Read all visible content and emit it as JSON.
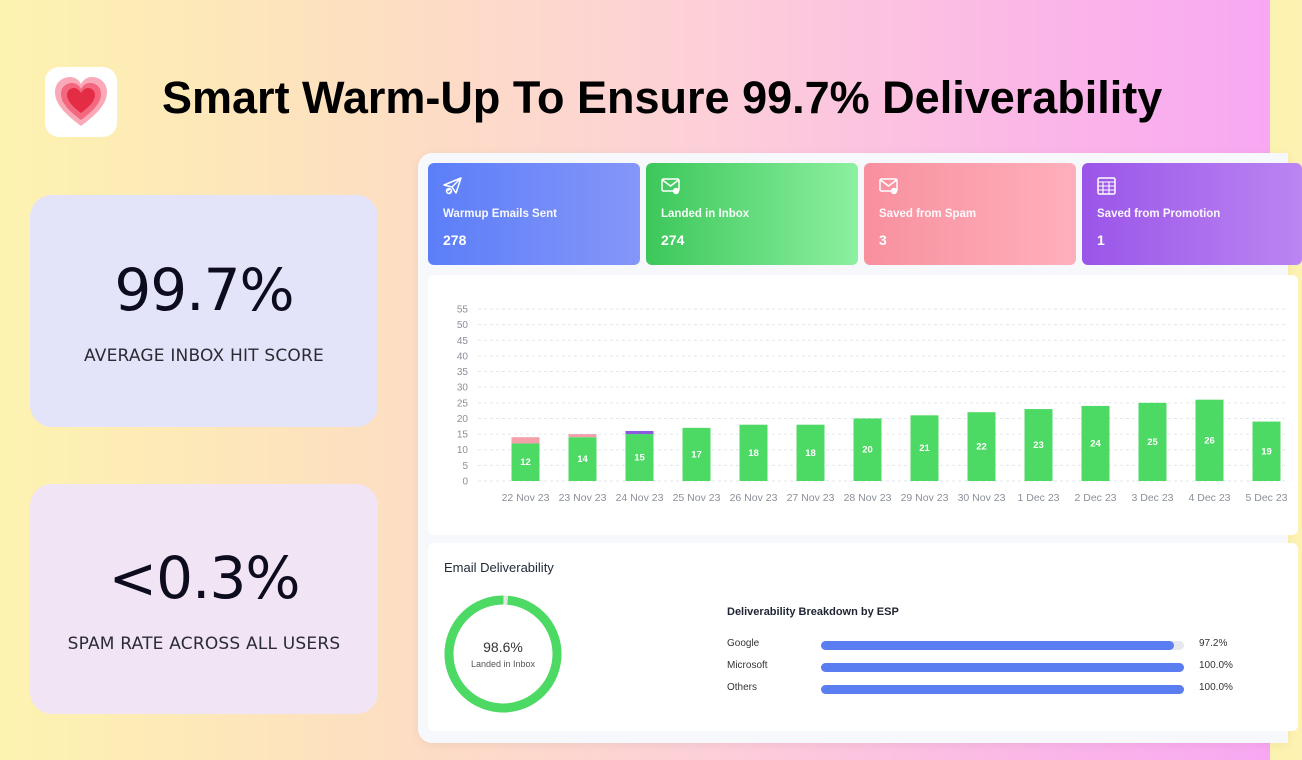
{
  "headline": "Smart Warm-Up To Ensure 99.7% Deliverability",
  "logo_icon": "heart-icon",
  "stats": [
    {
      "value": "99.7%",
      "label": "AVERAGE INBOX HIT SCORE"
    },
    {
      "value": "<0.3%",
      "label": "SPAM RATE ACROSS ALL USERS"
    }
  ],
  "metrics": [
    {
      "icon": "send-check-icon",
      "label": "Warmup Emails Sent",
      "value": "278"
    },
    {
      "icon": "mail-inbox-icon",
      "label": "Landed in Inbox",
      "value": "274"
    },
    {
      "icon": "mail-shield-icon",
      "label": "Saved from Spam",
      "value": "3"
    },
    {
      "icon": "calendar-grid-icon",
      "label": "Saved from Promotion",
      "value": "1"
    }
  ],
  "chart_data": {
    "type": "bar",
    "stacked": true,
    "categories": [
      "22 Nov 23",
      "23 Nov 23",
      "24 Nov 23",
      "25 Nov 23",
      "26 Nov 23",
      "27 Nov 23",
      "28 Nov 23",
      "29 Nov 23",
      "30 Nov 23",
      "1 Dec 23",
      "2 Dec 23",
      "3 Dec 23",
      "4 Dec 23",
      "5 Dec 23"
    ],
    "series": [
      {
        "values": [
          12,
          14,
          15,
          17,
          18,
          18,
          20,
          21,
          22,
          23,
          24,
          25,
          26,
          19
        ],
        "color": "#4cd964",
        "data_labels": [
          "12",
          "14",
          "15",
          "17",
          "18",
          "18",
          "20",
          "21",
          "22",
          "23",
          "24",
          "25",
          "26",
          "19"
        ]
      },
      {
        "values": [
          2,
          1,
          0,
          0,
          0,
          0,
          0,
          0,
          0,
          0,
          0,
          0,
          0,
          0
        ],
        "color": "#f4a0aa"
      },
      {
        "values": [
          0,
          0,
          1,
          0,
          0,
          0,
          0,
          0,
          0,
          0,
          0,
          0,
          0,
          0
        ],
        "color": "#8a5be0"
      }
    ],
    "ylim": [
      0,
      55
    ],
    "yticks": [
      0,
      5,
      10,
      15,
      20,
      25,
      30,
      35,
      40,
      45,
      50,
      55
    ],
    "grid": true
  },
  "deliverability": {
    "title": "Email Deliverability",
    "donut_value": "98.6%",
    "donut_fraction": 0.986,
    "donut_label": "Landed in Inbox",
    "breakdown_title": "Deliverability Breakdown by ESP",
    "esps": [
      {
        "name": "Google",
        "value": "97.2%",
        "fraction": 0.972
      },
      {
        "name": "Microsoft",
        "value": "100.0%",
        "fraction": 1.0
      },
      {
        "name": "Others",
        "value": "100.0%",
        "fraction": 1.0
      }
    ]
  }
}
